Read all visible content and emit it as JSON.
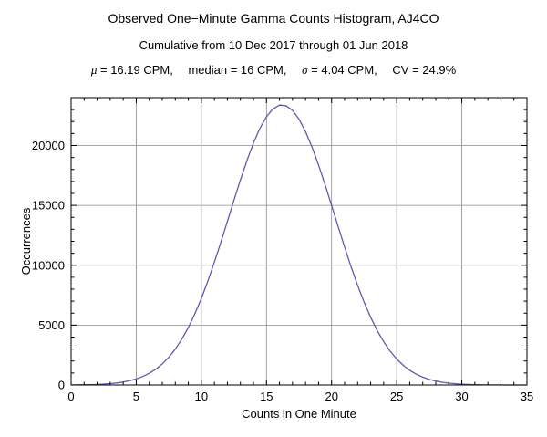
{
  "header": {
    "title": "Observed One−Minute Gamma Counts Histogram, AJ4CO",
    "subtitle": "Cumulative from 10 Dec 2017 through 01 Jun 2018",
    "stats": {
      "mu_symbol": "μ",
      "mu_rest": " = 16.19 CPM,",
      "median": "median = 16 CPM,",
      "sigma_symbol": "σ",
      "sigma_rest": " = 4.04 CPM,",
      "cv": "CV = 24.9%"
    }
  },
  "chart_data": {
    "type": "line",
    "title": "Observed One−Minute Gamma Counts Histogram, AJ4CO",
    "subtitle": "Cumulative from 10 Dec 2017 through 01 Jun 2018",
    "stats_text": "μ = 16.19 CPM, median = 16 CPM, σ = 4.04 CPM, CV = 24.9%",
    "xlabel": "Counts in One Minute",
    "ylabel": "Occurrences",
    "xlim": [
      0,
      35
    ],
    "ylim": [
      0,
      24000
    ],
    "xticks": [
      0,
      5,
      10,
      15,
      20,
      25,
      30,
      35
    ],
    "yticks": [
      0,
      5000,
      10000,
      15000,
      20000
    ],
    "xminor_step": 1,
    "yminor_step": 1000,
    "grid": true,
    "grid_color": "#8a8a8a",
    "line_color": "#5c5cad",
    "frame_color": "#000000",
    "x": [
      0,
      0.5,
      1,
      1.5,
      2,
      2.5,
      3,
      3.5,
      4,
      4.5,
      5,
      5.5,
      6,
      6.5,
      7,
      7.5,
      8,
      8.5,
      9,
      9.5,
      10,
      10.5,
      11,
      11.5,
      12,
      12.5,
      13,
      13.5,
      14,
      14.5,
      15,
      15.5,
      16,
      16.5,
      17,
      17.5,
      18,
      18.5,
      19,
      19.5,
      20,
      20.5,
      21,
      21.5,
      22,
      22.5,
      23,
      23.5,
      24,
      24.5,
      25,
      25.5,
      26,
      26.5,
      27,
      27.5,
      28,
      28.5,
      29,
      29.5,
      30,
      30.5,
      31,
      31.5,
      32,
      32.5,
      33,
      33.5,
      34,
      34.5,
      35
    ],
    "y": [
      8,
      12,
      20,
      31,
      49,
      75,
      114,
      168,
      246,
      356,
      505,
      706,
      973,
      1318,
      1758,
      2312,
      2997,
      3824,
      4802,
      5941,
      7233,
      8677,
      10252,
      11927,
      13663,
      15418,
      17131,
      18748,
      20204,
      21439,
      22406,
      23061,
      23374,
      23331,
      22934,
      22201,
      21165,
      19871,
      18372,
      16728,
      14999,
      13245,
      11518,
      9864,
      8319,
      6910,
      5651,
      4552,
      3610,
      2821,
      2169,
      1644,
      1227,
      902,
      653,
      465,
      326,
      226,
      153,
      103,
      68,
      44,
      28,
      18,
      11,
      7,
      4,
      2,
      1,
      1,
      0
    ]
  }
}
